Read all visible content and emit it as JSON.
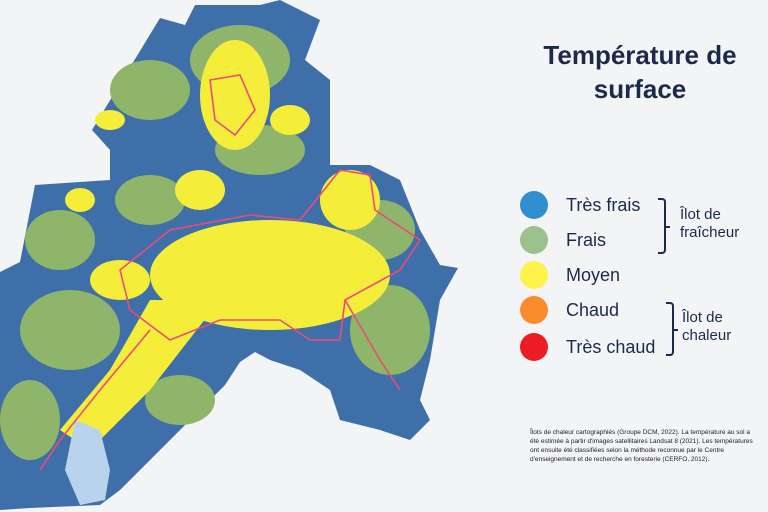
{
  "title": {
    "line1": "Température de",
    "line2": "surface"
  },
  "legend": {
    "items": [
      {
        "label": "Très frais",
        "color": "#2f8fcf"
      },
      {
        "label": "Frais",
        "color": "#9cc08e"
      },
      {
        "label": "Moyen",
        "color": "#fdf34a"
      },
      {
        "label": "Chaud",
        "color": "#fb8c2e"
      },
      {
        "label": "Très chaud",
        "color": "#ec1c24"
      }
    ],
    "groups": [
      {
        "label": "Îlot de fraîcheur"
      },
      {
        "label": "Îlot de chaleur"
      }
    ]
  },
  "note": "Îlots de chaleur cartographiés (Groupe DCM, 2022). La température au sol a été estimée à partir d'images satellitaires Landsat 8 (2021). Les températures ont ensuite été classifiées selon la méthode reconnue par le Centre d'enseignement et de recherche en foresterie (CERFO, 2012).",
  "map_colors": {
    "base": "#3f6fa8",
    "green": "#8fb56a",
    "yellow": "#f4ee3a",
    "outline": "#ec4b7a",
    "water": "#b9d3ec"
  }
}
